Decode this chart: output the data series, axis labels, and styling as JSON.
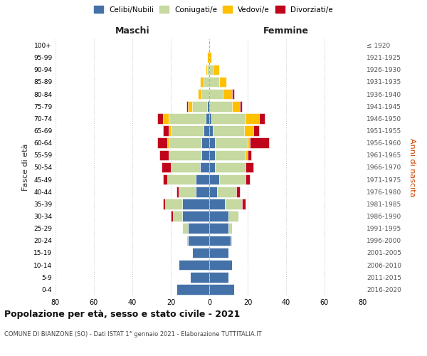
{
  "age_groups": [
    "0-4",
    "5-9",
    "10-14",
    "15-19",
    "20-24",
    "25-29",
    "30-34",
    "35-39",
    "40-44",
    "45-49",
    "50-54",
    "55-59",
    "60-64",
    "65-69",
    "70-74",
    "75-79",
    "80-84",
    "85-89",
    "90-94",
    "95-99",
    "100+"
  ],
  "birth_years": [
    "2016-2020",
    "2011-2015",
    "2006-2010",
    "2001-2005",
    "1996-2000",
    "1991-1995",
    "1986-1990",
    "1981-1985",
    "1976-1980",
    "1971-1975",
    "1966-1970",
    "1961-1965",
    "1956-1960",
    "1951-1955",
    "1946-1950",
    "1941-1945",
    "1936-1940",
    "1931-1935",
    "1926-1930",
    "1921-1925",
    "≤ 1920"
  ],
  "males": {
    "celibi": [
      17,
      10,
      16,
      9,
      11,
      11,
      14,
      14,
      7,
      7,
      5,
      4,
      4,
      3,
      2,
      1,
      0,
      0,
      0,
      0,
      0
    ],
    "coniugati": [
      0,
      0,
      0,
      0,
      1,
      3,
      5,
      9,
      9,
      15,
      15,
      17,
      17,
      17,
      19,
      8,
      4,
      3,
      1,
      0,
      0
    ],
    "vedovi": [
      0,
      0,
      0,
      0,
      0,
      0,
      0,
      0,
      0,
      0,
      0,
      0,
      1,
      1,
      3,
      2,
      2,
      2,
      1,
      1,
      0
    ],
    "divorziati": [
      0,
      0,
      0,
      0,
      0,
      0,
      1,
      1,
      1,
      2,
      5,
      5,
      5,
      3,
      3,
      1,
      0,
      0,
      0,
      0,
      0
    ]
  },
  "females": {
    "nubili": [
      13,
      10,
      12,
      10,
      11,
      10,
      10,
      8,
      4,
      5,
      3,
      3,
      3,
      2,
      1,
      0,
      0,
      0,
      0,
      0,
      0
    ],
    "coniugate": [
      0,
      0,
      0,
      0,
      1,
      2,
      5,
      9,
      10,
      14,
      16,
      16,
      17,
      16,
      18,
      12,
      7,
      5,
      2,
      0,
      0
    ],
    "vedove": [
      0,
      0,
      0,
      0,
      0,
      0,
      0,
      0,
      0,
      0,
      0,
      1,
      1,
      5,
      7,
      4,
      5,
      4,
      3,
      1,
      0
    ],
    "divorziate": [
      0,
      0,
      0,
      0,
      0,
      0,
      0,
      2,
      2,
      2,
      4,
      2,
      10,
      3,
      3,
      1,
      1,
      0,
      0,
      0,
      0
    ]
  },
  "colors": {
    "celibi": "#4472a8",
    "coniugati": "#c5d9a0",
    "vedovi": "#ffc000",
    "divorziati": "#c0041c"
  },
  "xlim": 80,
  "title": "Popolazione per età, sesso e stato civile - 2021",
  "subtitle": "COMUNE DI BIANZONE (SO) - Dati ISTAT 1° gennaio 2021 - Elaborazione TUTTITALIA.IT",
  "ylabel_left": "Fasce di età",
  "ylabel_right": "Anni di nascita",
  "xlabel_left": "Maschi",
  "xlabel_right": "Femmine",
  "background_color": "#ffffff",
  "grid_color": "#cccccc"
}
